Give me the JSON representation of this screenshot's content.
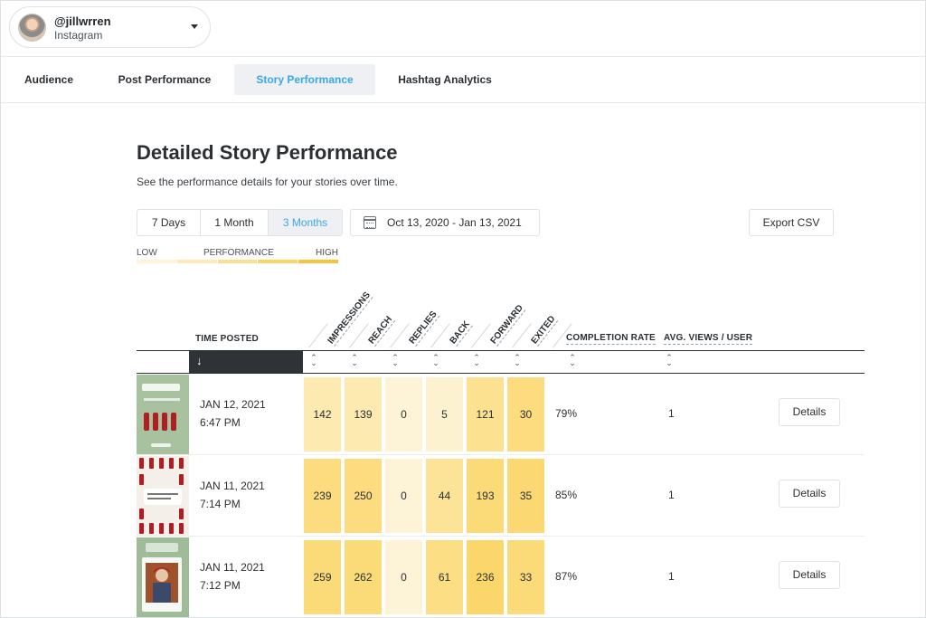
{
  "account": {
    "handle": "@jillwrren",
    "network": "Instagram"
  },
  "tabs": [
    {
      "label": "Audience",
      "active": false
    },
    {
      "label": "Post Performance",
      "active": false
    },
    {
      "label": "Story Performance",
      "active": true
    },
    {
      "label": "Hashtag Analytics",
      "active": false
    }
  ],
  "page": {
    "title": "Detailed Story Performance",
    "subtitle": "See the performance details for your stories over time."
  },
  "range": {
    "options": [
      "7 Days",
      "1 Month",
      "3 Months"
    ],
    "selected": "3 Months",
    "dates": "Oct 13, 2020 - Jan 13, 2021"
  },
  "export_label": "Export CSV",
  "legend": {
    "low": "LOW",
    "mid": "PERFORMANCE",
    "high": "HIGH"
  },
  "columns": {
    "time_posted": "TIME POSTED",
    "metrics": [
      "IMPRESSIONS",
      "REACH",
      "REPLIES",
      "BACK",
      "FORWARD",
      "EXITED"
    ],
    "completion_rate": "COMPLETION RATE",
    "avg_views": "AVG. VIEWS / USER"
  },
  "rows": [
    {
      "date": "JAN 12, 2021",
      "time": "6:47 PM",
      "metrics": [
        "142",
        "139",
        "0",
        "5",
        "121",
        "30"
      ],
      "intensity": [
        0.35,
        0.35,
        0.05,
        0.12,
        0.6,
        0.75
      ],
      "completion": "79%",
      "avg_views": "1",
      "details_label": "Details"
    },
    {
      "date": "JAN 11, 2021",
      "time": "7:14 PM",
      "metrics": [
        "239",
        "250",
        "0",
        "44",
        "193",
        "35"
      ],
      "intensity": [
        0.75,
        0.75,
        0.05,
        0.55,
        0.8,
        0.85
      ],
      "completion": "85%",
      "avg_views": "1",
      "details_label": "Details"
    },
    {
      "date": "JAN 11, 2021",
      "time": "7:12 PM",
      "metrics": [
        "259",
        "262",
        "0",
        "61",
        "236",
        "33"
      ],
      "intensity": [
        0.8,
        0.8,
        0.05,
        0.7,
        0.9,
        0.8
      ],
      "completion": "87%",
      "avg_views": "1",
      "details_label": "Details"
    }
  ],
  "colors": {
    "accent": "#3aa7e6",
    "heat_low": "#fdf6de",
    "heat_high": "#fbd35e",
    "sort_active_bg": "#2f3338"
  }
}
